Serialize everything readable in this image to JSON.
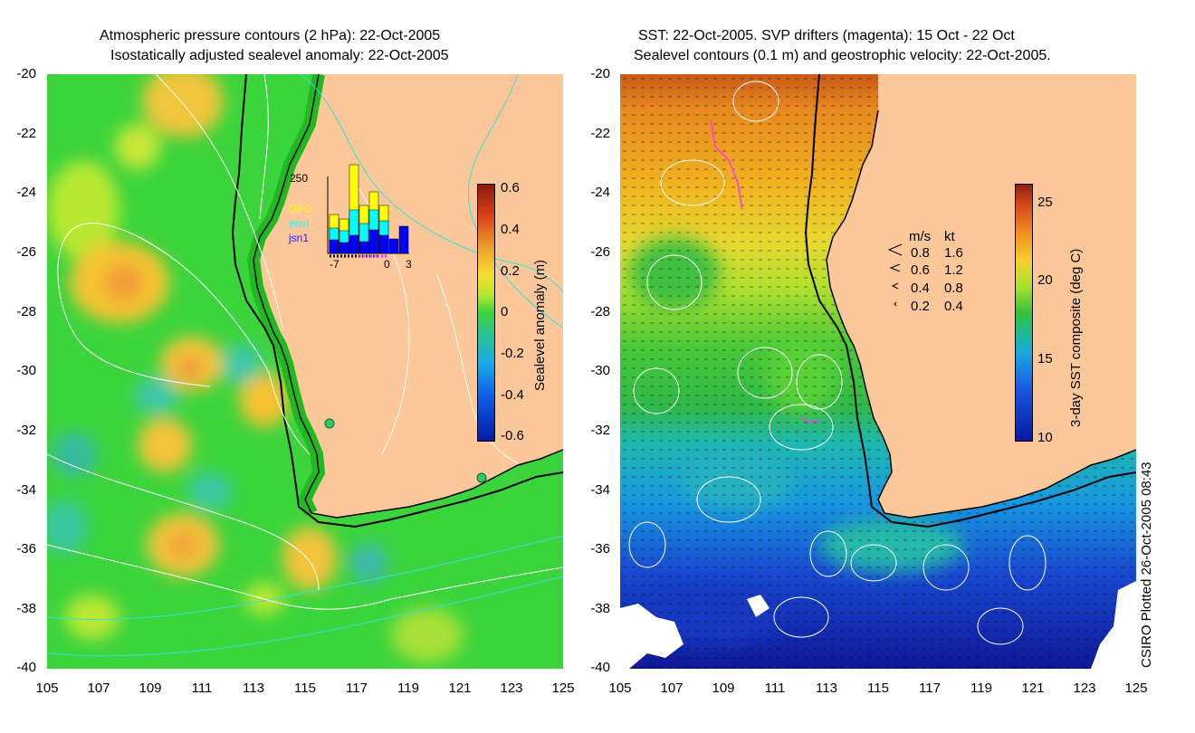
{
  "left_panel": {
    "title_line1": "Atmospheric pressure contours (2 hPa): 22-Oct-2005",
    "title_line2": "Isostatically adjusted sealevel anomaly: 22-Oct-2005",
    "colorbar": {
      "label": "Sealevel anomaly (m)",
      "ticks": [
        "0.6",
        "0.4",
        "0.2",
        "0",
        "-0.2",
        "-0.4",
        "-0.6"
      ]
    },
    "inset": {
      "ymax_label": "250",
      "legend": [
        "GFO",
        "envi",
        "jsn1"
      ],
      "legend_colors": [
        "#ffff00",
        "#00ffff",
        "#0000ff"
      ],
      "xtick_labels": [
        "-7",
        "0",
        "3"
      ]
    }
  },
  "right_panel": {
    "title_line1": "SST: 22-Oct-2005. SVP drifters (magenta): 15 Oct - 22 Oct",
    "title_line2": "Sealevel contours (0.1 m) and geostrophic velocity: 22-Oct-2005.",
    "colorbar": {
      "label": "3-day SST composite (deg C)",
      "ticks": [
        "25",
        "20",
        "15",
        "10"
      ]
    },
    "velocity_key": {
      "header_ms": "m/s",
      "header_kt": "kt",
      "rows": [
        {
          "ms": "0.8",
          "kt": "1.6"
        },
        {
          "ms": "0.6",
          "kt": "1.2"
        },
        {
          "ms": "0.4",
          "kt": "0.8"
        },
        {
          "ms": "0.2",
          "kt": "0.4"
        }
      ]
    }
  },
  "axes": {
    "y_ticks": [
      "-20",
      "-22",
      "-24",
      "-26",
      "-28",
      "-30",
      "-32",
      "-34",
      "-36",
      "-38",
      "-40"
    ],
    "x_ticks": [
      "105",
      "107",
      "109",
      "111",
      "113",
      "115",
      "117",
      "119",
      "121",
      "123",
      "125"
    ]
  },
  "credit": "CSIRO Plotted 26-Oct-2005 08:43",
  "colors": {
    "land": "#fcc89a",
    "coast": "#000000",
    "pressure_contour": "#ffffff",
    "isobath_cyan": "#33e0e0",
    "drifter": "#ff33ff"
  }
}
